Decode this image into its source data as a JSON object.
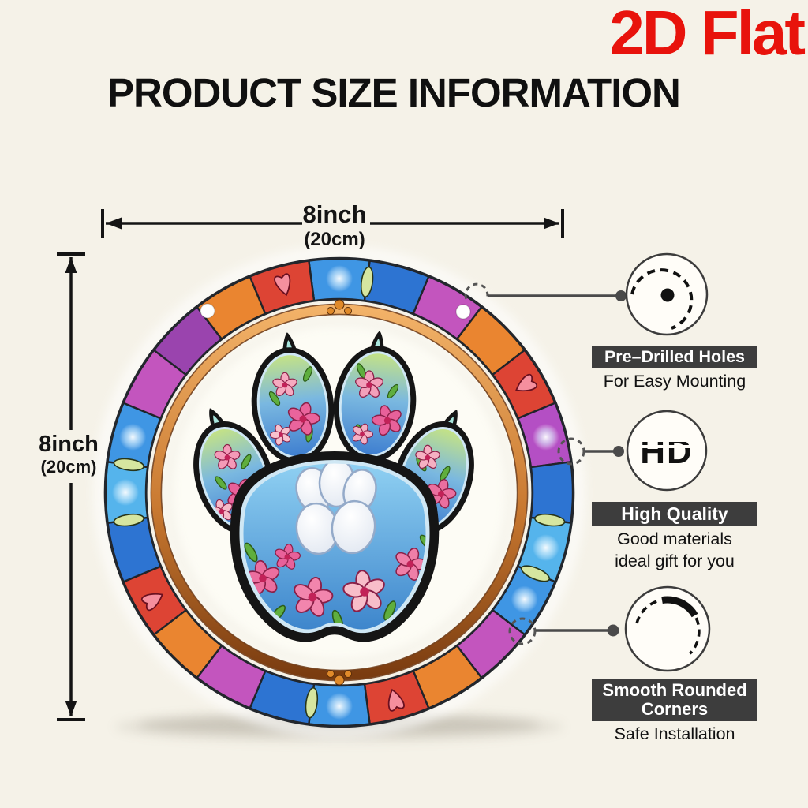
{
  "badge": {
    "label": "2D Flat",
    "color": "#e8130c"
  },
  "title": "PRODUCT SIZE INFORMATION",
  "dimensions": {
    "horizontal": {
      "value": "8inch",
      "metric": "(20cm)"
    },
    "vertical": {
      "value": "8inch",
      "metric": "(20cm)"
    }
  },
  "features": [
    {
      "heading": "Pre–Drilled Holes",
      "sub_lines": [
        "For Easy Mounting"
      ],
      "icon": "drilled-hole-icon"
    },
    {
      "heading": "High Quality",
      "icon_label": "HD",
      "sub_lines": [
        "Good materials",
        "ideal gift for you"
      ],
      "icon": "hd-icon"
    },
    {
      "heading": "Smooth Rounded Corners",
      "sub_lines": [
        "Safe Installation"
      ],
      "icon": "rounded-corner-icon"
    }
  ],
  "artwork": {
    "description": "stained-glass paw print suncatcher wreath",
    "accent_colors": {
      "copper_ring": "#c87830",
      "paw_black": "#151515",
      "pad_blue": "#4f9ade",
      "flower_pink": "#ee6f9f",
      "leaf_green": "#5fae3e",
      "label_bar": "#3d3d3d"
    },
    "ring_segments": [
      {
        "color": "#3f96e4",
        "accent": "sparkle",
        "blue": true
      },
      {
        "color": "#2d74d2",
        "accent": "",
        "blue": true
      },
      {
        "color": "#c355be",
        "accent": "",
        "blue": false
      },
      {
        "color": "#ea8530",
        "accent": "",
        "blue": false
      },
      {
        "color": "#dd4434",
        "accent": "heart",
        "blue": false
      },
      {
        "color": "#b44fc4",
        "accent": "sparkle",
        "blue": false
      },
      {
        "color": "#2d74d2",
        "accent": "",
        "blue": true
      },
      {
        "color": "#55b4ec",
        "accent": "sparkle",
        "blue": true
      },
      {
        "color": "#3f96e4",
        "accent": "sparkle",
        "blue": true
      },
      {
        "color": "#c355be",
        "accent": "",
        "blue": false
      },
      {
        "color": "#ea8530",
        "accent": "",
        "blue": false
      },
      {
        "color": "#dd4434",
        "accent": "heart",
        "blue": false
      },
      {
        "color": "#3f96e4",
        "accent": "sparkle",
        "blue": true
      },
      {
        "color": "#2d74d2",
        "accent": "",
        "blue": true
      },
      {
        "color": "#c355be",
        "accent": "",
        "blue": false
      },
      {
        "color": "#ea8530",
        "accent": "",
        "blue": false
      },
      {
        "color": "#dd4434",
        "accent": "heart",
        "blue": false
      },
      {
        "color": "#2d74d2",
        "accent": "",
        "blue": true
      },
      {
        "color": "#55b4ec",
        "accent": "sparkle",
        "blue": true
      },
      {
        "color": "#3f96e4",
        "accent": "sparkle",
        "blue": true
      },
      {
        "color": "#c355be",
        "accent": "",
        "blue": false
      },
      {
        "color": "#9a44ae",
        "accent": "",
        "blue": false
      },
      {
        "color": "#ea8530",
        "accent": "",
        "blue": false
      },
      {
        "color": "#dd4434",
        "accent": "heart",
        "blue": false
      }
    ]
  }
}
